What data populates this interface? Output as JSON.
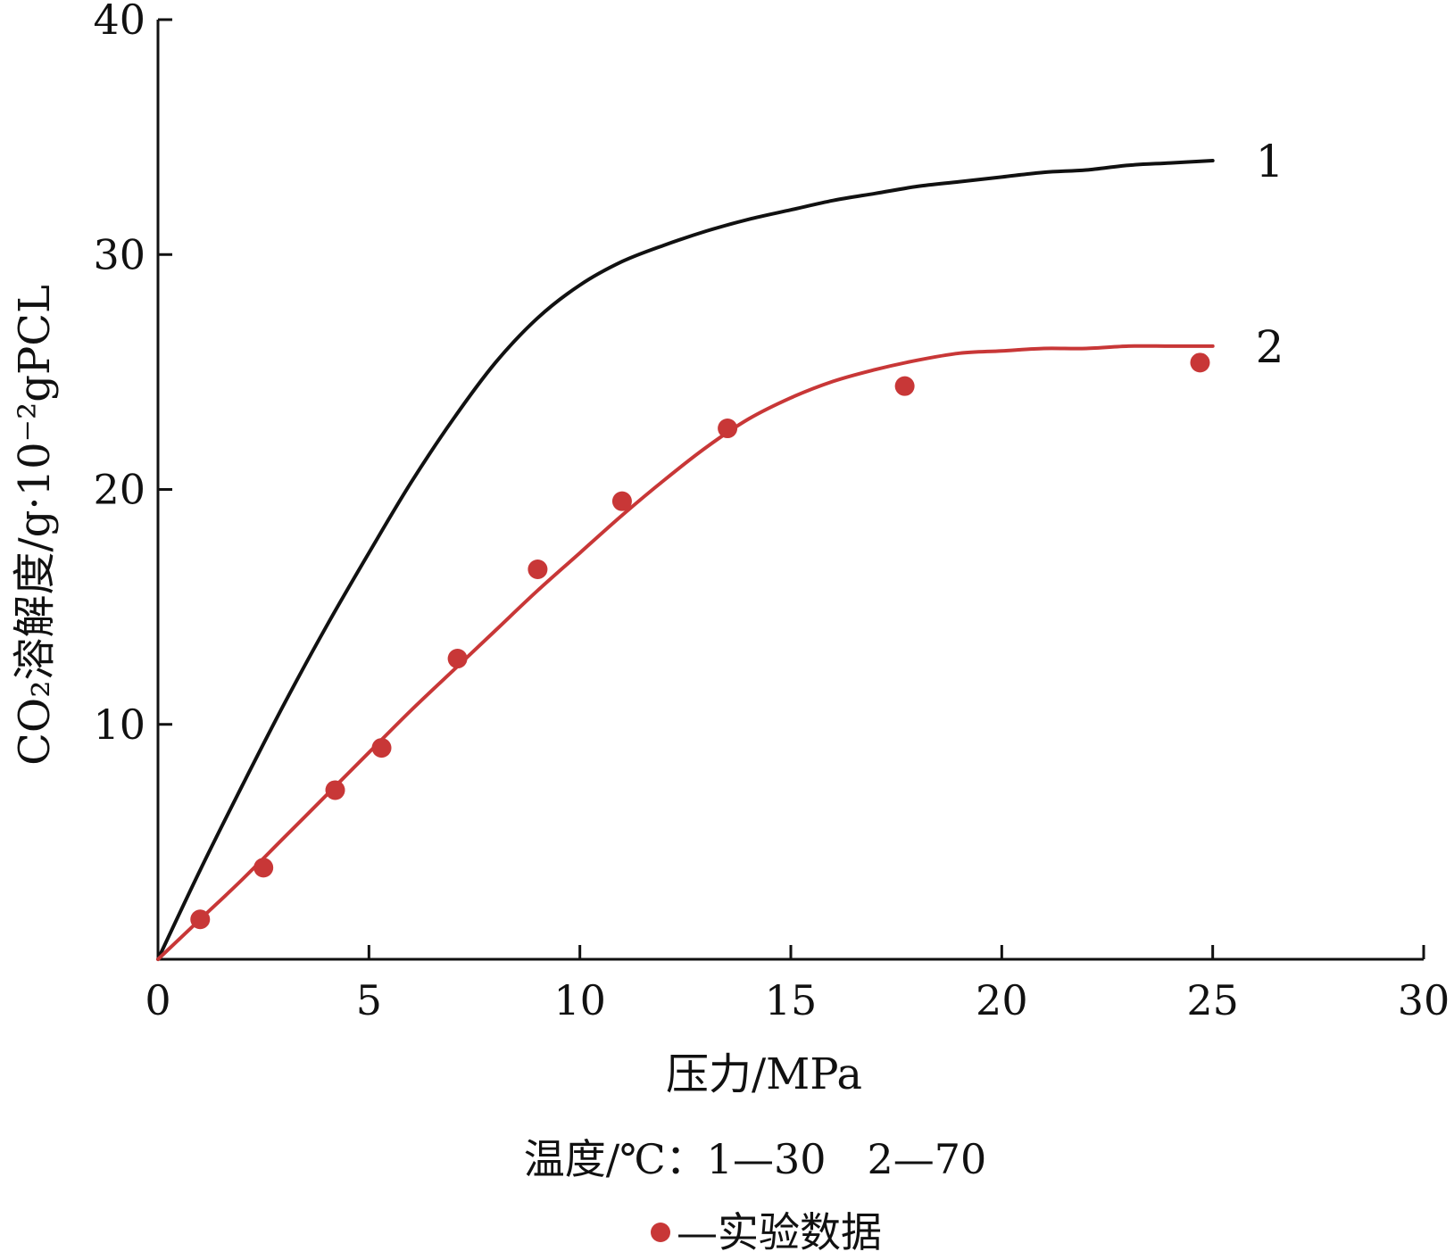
{
  "chart_data": {
    "type": "line",
    "xlabel": "压力/MPa",
    "ylabel": "CO₂溶解度/g·10⁻²gPCL",
    "xlim": [
      0,
      30
    ],
    "ylim": [
      0,
      40
    ],
    "x_ticks": [
      "0",
      "5",
      "10",
      "15",
      "20",
      "25",
      "30"
    ],
    "y_ticks": [
      "10",
      "20",
      "30",
      "40"
    ],
    "grid": false,
    "series": [
      {
        "name": "1",
        "kind": "line",
        "color": "#111111",
        "x": [
          0,
          1,
          2,
          3,
          4,
          5,
          6,
          7,
          8,
          9,
          10,
          11,
          12,
          13,
          14,
          15,
          16,
          17,
          18,
          19,
          20,
          21,
          22,
          23,
          24,
          25
        ],
        "y": [
          0,
          3.8,
          7.4,
          10.9,
          14.2,
          17.3,
          20.3,
          23.0,
          25.4,
          27.3,
          28.7,
          29.7,
          30.4,
          31.0,
          31.5,
          31.9,
          32.3,
          32.6,
          32.9,
          33.1,
          33.3,
          33.5,
          33.6,
          33.8,
          33.9,
          34.0
        ]
      },
      {
        "name": "2",
        "kind": "line",
        "color": "#c83737",
        "x": [
          0,
          1,
          2,
          3,
          4,
          5,
          6,
          7,
          8,
          9,
          10,
          11,
          12,
          13,
          14,
          15,
          16,
          17,
          18,
          19,
          20,
          21,
          22,
          23,
          24,
          25
        ],
        "y": [
          0,
          1.7,
          3.4,
          5.2,
          7.0,
          8.8,
          10.6,
          12.3,
          14.0,
          15.7,
          17.3,
          18.9,
          20.4,
          21.8,
          23.0,
          23.9,
          24.6,
          25.1,
          25.5,
          25.8,
          25.9,
          26.0,
          26.0,
          26.1,
          26.1,
          26.1
        ]
      }
    ],
    "points": {
      "name": "实验数据",
      "color": "#c83737",
      "x": [
        1.0,
        2.5,
        4.2,
        5.3,
        7.1,
        9.0,
        11.0,
        13.5,
        17.7,
        24.7
      ],
      "y": [
        1.7,
        3.9,
        7.2,
        9.0,
        12.8,
        16.6,
        19.5,
        22.6,
        24.4,
        25.4
      ]
    },
    "legend": {
      "temperature_caption": "温度/℃：1—30　2—70",
      "points_caption": "—实验数据"
    }
  }
}
